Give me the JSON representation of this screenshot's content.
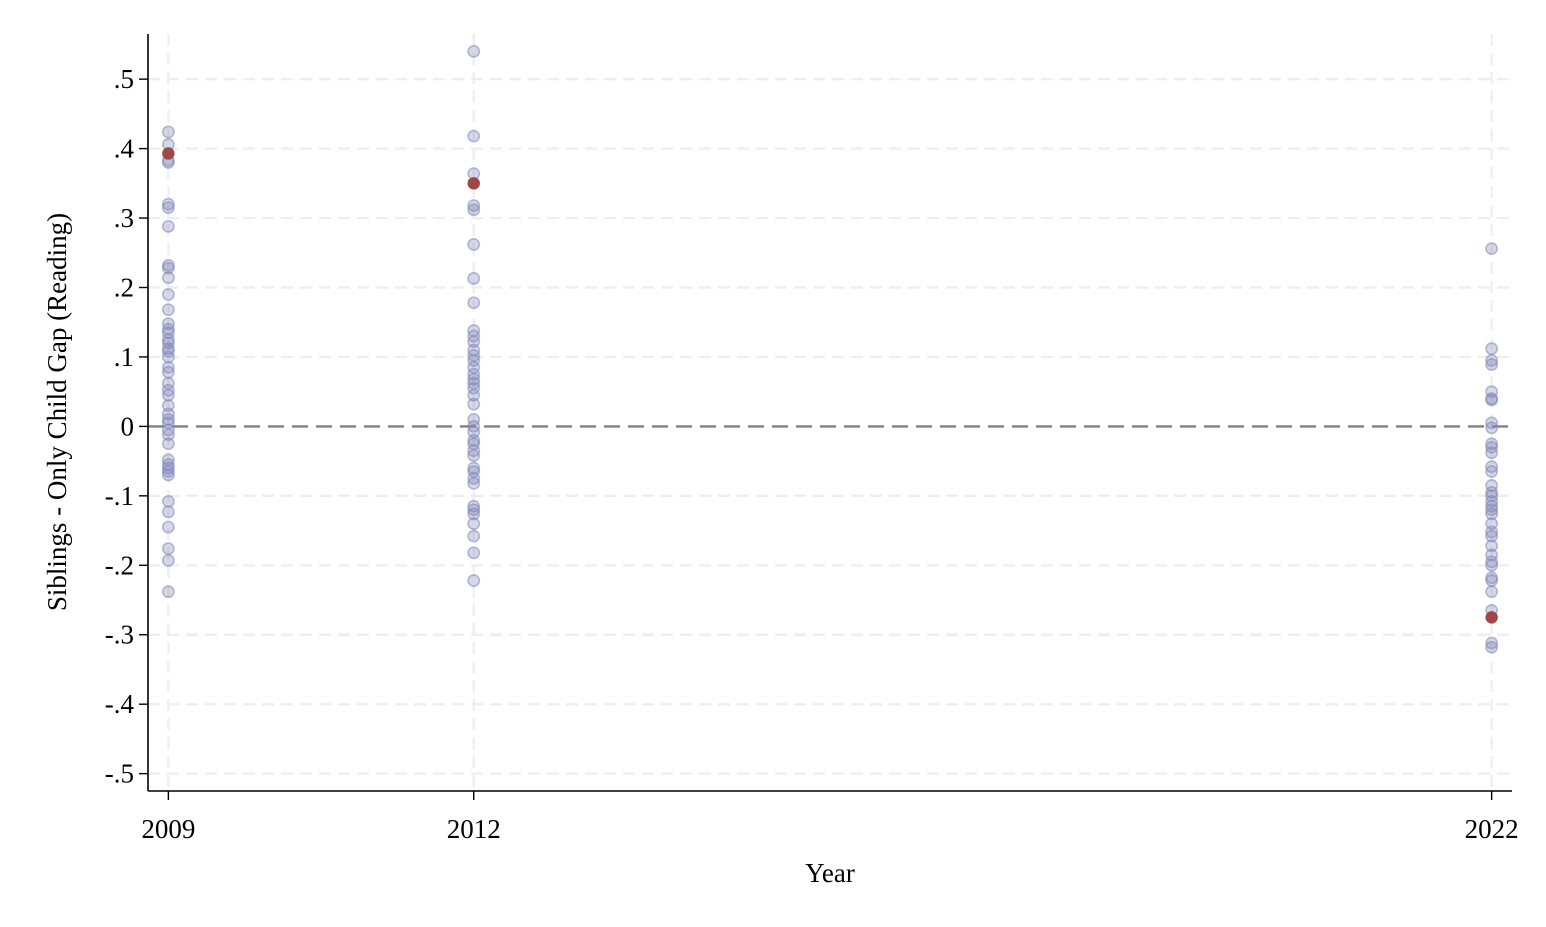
{
  "chart_data": {
    "type": "scatter",
    "xlabel": "Year",
    "ylabel": "Siblings - Only Child Gap (Reading)",
    "x_ticks": [
      2009,
      2012,
      2022
    ],
    "y_ticks": [
      {
        "value": 0.5,
        "label": ".5"
      },
      {
        "value": 0.4,
        "label": ".4"
      },
      {
        "value": 0.3,
        "label": ".3"
      },
      {
        "value": 0.2,
        "label": ".2"
      },
      {
        "value": 0.1,
        "label": ".1"
      },
      {
        "value": 0,
        "label": "0"
      },
      {
        "value": -0.1,
        "label": "-.1"
      },
      {
        "value": -0.2,
        "label": "-.2"
      },
      {
        "value": -0.3,
        "label": "-.3"
      },
      {
        "value": -0.4,
        "label": "-.4"
      },
      {
        "value": -0.5,
        "label": "-.5"
      }
    ],
    "ylim": [
      -0.525,
      0.565
    ],
    "xlim": [
      2008.8,
      2022.2
    ],
    "grid": true,
    "reference_line": 0,
    "colors": {
      "points": "#7f86b8",
      "highlight": "#a04848",
      "reference": "#808080",
      "grid": "#eeeeee"
    },
    "series": [
      {
        "x": 2009,
        "values": [
          0.424,
          0.406,
          0.383,
          0.38,
          0.32,
          0.315,
          0.288,
          0.232,
          0.228,
          0.214,
          0.19,
          0.168,
          0.148,
          0.14,
          0.135,
          0.125,
          0.12,
          0.112,
          0.108,
          0.1,
          0.085,
          0.078,
          0.062,
          0.052,
          0.045,
          0.03,
          0.018,
          0.01,
          0.005,
          -0.005,
          -0.012,
          -0.025,
          -0.048,
          -0.055,
          -0.06,
          -0.065,
          -0.07,
          -0.108,
          -0.123,
          -0.145,
          -0.176,
          -0.193,
          -0.238
        ]
      },
      {
        "x": 2012,
        "values": [
          0.54,
          0.418,
          0.364,
          0.318,
          0.312,
          0.262,
          0.213,
          0.178,
          0.138,
          0.13,
          0.122,
          0.11,
          0.102,
          0.095,
          0.085,
          0.075,
          0.068,
          0.062,
          0.055,
          0.045,
          0.032,
          0.01,
          0.0,
          -0.008,
          -0.02,
          -0.025,
          -0.035,
          -0.042,
          -0.06,
          -0.065,
          -0.075,
          -0.082,
          -0.115,
          -0.12,
          -0.126,
          -0.14,
          -0.158,
          -0.182,
          -0.222
        ]
      },
      {
        "x": 2022,
        "values": [
          0.256,
          0.112,
          0.095,
          0.089,
          0.05,
          0.04,
          0.038,
          0.005,
          -0.002,
          -0.025,
          -0.03,
          -0.038,
          -0.058,
          -0.065,
          -0.085,
          -0.095,
          -0.1,
          -0.108,
          -0.115,
          -0.12,
          -0.126,
          -0.14,
          -0.152,
          -0.158,
          -0.172,
          -0.185,
          -0.195,
          -0.2,
          -0.218,
          -0.222,
          -0.238,
          -0.265,
          -0.312,
          -0.318
        ]
      }
    ],
    "highlight": [
      {
        "x": 2009,
        "y": 0.393
      },
      {
        "x": 2012,
        "y": 0.35
      },
      {
        "x": 2022,
        "y": -0.275
      }
    ]
  }
}
